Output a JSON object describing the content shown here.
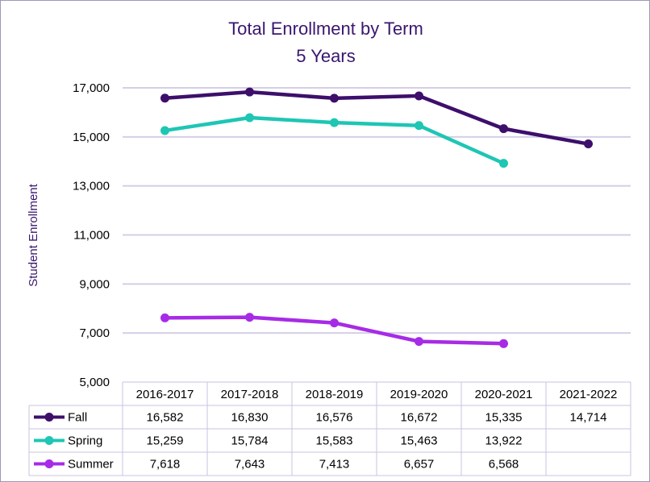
{
  "chart_data": {
    "type": "line",
    "title": "Total Enrollment by Term",
    "subtitle": "5 Years",
    "ylabel": "Student Enrollment",
    "xlabel": "",
    "categories": [
      "2016-2017",
      "2017-2018",
      "2018-2019",
      "2019-2020",
      "2020-2021",
      "2021-2022"
    ],
    "ylim": [
      5000,
      17000
    ],
    "yticks": [
      5000,
      7000,
      9000,
      11000,
      13000,
      15000,
      17000
    ],
    "ytick_labels": [
      "5,000",
      "7,000",
      "9,000",
      "11,000",
      "13,000",
      "15,000",
      "17,000"
    ],
    "grid": true,
    "legend": "data-table",
    "series": [
      {
        "name": "Fall",
        "color": "#3d0f6b",
        "values": [
          16582,
          16830,
          16576,
          16672,
          15335,
          14714
        ],
        "labels": [
          "16,582",
          "16,830",
          "16,576",
          "16,672",
          "15,335",
          "14,714"
        ]
      },
      {
        "name": "Spring",
        "color": "#1ec6b4",
        "values": [
          15259,
          15784,
          15583,
          15463,
          13922,
          null
        ],
        "labels": [
          "15,259",
          "15,784",
          "15,583",
          "15,463",
          "13,922",
          ""
        ]
      },
      {
        "name": "Summer",
        "color": "#a72be6",
        "values": [
          7618,
          7643,
          7413,
          6657,
          6568,
          null
        ],
        "labels": [
          "7,618",
          "7,643",
          "7,413",
          "6,657",
          "6,568",
          ""
        ]
      }
    ]
  }
}
